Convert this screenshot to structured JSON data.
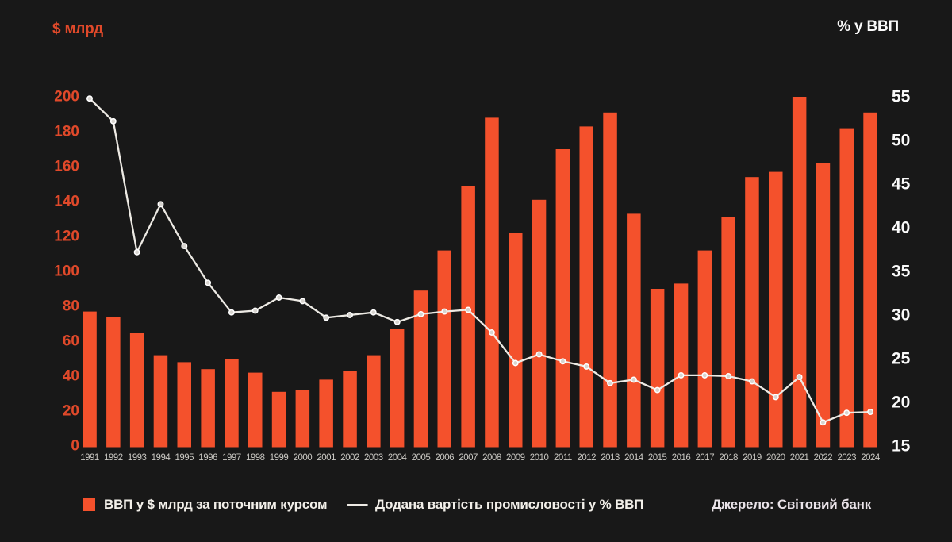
{
  "page": {
    "background": "#181818"
  },
  "chart_data": {
    "type": "bar+line combo",
    "x": [
      1991,
      1992,
      1993,
      1994,
      1995,
      1996,
      1997,
      1998,
      1999,
      2000,
      2001,
      2002,
      2003,
      2004,
      2005,
      2006,
      2007,
      2008,
      2009,
      2010,
      2011,
      2012,
      2013,
      2014,
      2015,
      2016,
      2017,
      2018,
      2019,
      2020,
      2021,
      2022,
      2023,
      2024
    ],
    "series": [
      {
        "name": "ВВП у $ млрд за поточним курсом",
        "type": "bar",
        "axis": "left",
        "color": "#f4512c",
        "values": [
          77,
          74,
          65,
          52,
          48,
          44,
          50,
          42,
          31,
          32,
          38,
          43,
          52,
          67,
          89,
          112,
          149,
          188,
          122,
          141,
          170,
          183,
          191,
          133,
          90,
          93,
          112,
          131,
          154,
          157,
          200,
          162,
          182,
          191
        ]
      },
      {
        "name": "Додана вартість промисловості у % ВВП",
        "type": "line",
        "axis": "right",
        "color": "#edeae4",
        "marker_fill": "#d7d4cf",
        "values": [
          54.8,
          52.2,
          37.2,
          42.7,
          37.9,
          33.7,
          30.3,
          30.5,
          32.0,
          31.6,
          29.7,
          30.0,
          30.3,
          29.2,
          30.1,
          30.4,
          30.6,
          28.0,
          24.5,
          25.5,
          24.7,
          24.1,
          22.2,
          22.6,
          21.4,
          23.1,
          23.1,
          23.0,
          22.4,
          20.6,
          22.9,
          17.7,
          18.8,
          18.9
        ]
      }
    ],
    "left_axis": {
      "title": "$ млрд",
      "min": 0,
      "max": 200,
      "step": 20,
      "color": "#e0492a"
    },
    "right_axis": {
      "title": "% у ВВП",
      "min": 15,
      "max": 55,
      "step": 5,
      "color": "#fafafa"
    },
    "x_label_color": "#c9c7c2",
    "grid": false,
    "legend_position": "bottom",
    "source": "Джерело: Світовий банк"
  }
}
